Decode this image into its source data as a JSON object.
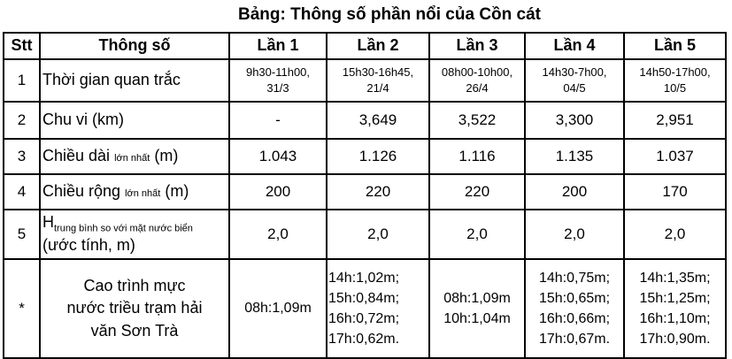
{
  "title": "Bảng: Thông số phần nổi của Cồn cát",
  "headers": [
    "Stt",
    "Thông số",
    "Lần 1",
    "Lần 2",
    "Lần 3",
    "Lần 4",
    "Lần 5"
  ],
  "rows": [
    {
      "stt": "1",
      "param": "Thời gian quan trắc",
      "values": [
        [
          "9h30-11h00,",
          "31/3"
        ],
        [
          "15h30-16h45,",
          "21/4"
        ],
        [
          "08h00-10h00,",
          "26/4"
        ],
        [
          "14h30-7h00,",
          "04/5"
        ],
        [
          "14h50-17h00,",
          "10/5"
        ]
      ]
    },
    {
      "stt": "2",
      "param": "Chu vi (km)",
      "values": [
        "-",
        "3,649",
        "3,522",
        "3,300",
        "2,951"
      ]
    },
    {
      "stt": "3",
      "param": "Chiều dài",
      "param_sub": "lớn nhất",
      "param_unit": "(m)",
      "values": [
        "1.043",
        "1.126",
        "1.116",
        "1.135",
        "1.037"
      ]
    },
    {
      "stt": "4",
      "param": "Chiều rộng",
      "param_sub": "lớn nhất",
      "param_unit": "(m)",
      "values": [
        "200",
        "220",
        "220",
        "200",
        "170"
      ]
    },
    {
      "stt": "5",
      "param": "H",
      "param_sub": "trung bình so với mặt nước biển",
      "param_unit": "(ước tính, m)",
      "values": [
        "2,0",
        "2,0",
        "2,0",
        "2,0",
        "2,0"
      ]
    },
    {
      "stt": "*",
      "param": "Cao trình mực nước triều trạm hải văn Sơn Trà",
      "values": [
        [
          "08h:1,09m"
        ],
        [
          "14h:1,02m;",
          "15h:0,84m;",
          "16h:0,72m;",
          "17h:0,62m."
        ],
        [
          "08h:1,09m",
          "10h:1,04m"
        ],
        [
          "14h:0,75m;",
          "15h:0,65m;",
          "16h:0,66m;",
          "17h:0,67m."
        ],
        [
          "14h:1,35m;",
          "15h:1,25m;",
          "16h:1,10m;",
          "17h:0,90m."
        ]
      ]
    }
  ]
}
